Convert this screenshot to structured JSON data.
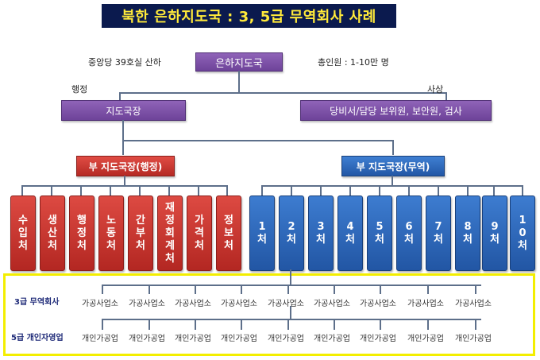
{
  "title": "북한 은하지도국 : 3, 5급 무역회사 사례",
  "top": {
    "left_note": "중앙당 39호실 산하",
    "center": "은하지도국",
    "right_note": "총인원 : 1-10만 명"
  },
  "branches": {
    "left_label": "행정",
    "right_label": "사상",
    "left_box": "지도국장",
    "right_box": "당비서/담당 보위원, 보안원, 검사"
  },
  "deputies": {
    "admin": "부 지도국장(행정)",
    "trade": "부 지도국장(무역)"
  },
  "admin_depts": [
    "수입처",
    "생산처",
    "행정처",
    "노동처",
    "간부처",
    "재정회계처",
    "가격처",
    "정보처"
  ],
  "trade_depts": [
    "1처",
    "2처",
    "3처",
    "4처",
    "5처",
    "6처",
    "7처",
    "8처",
    "9처",
    "10처"
  ],
  "bottom": {
    "row1_label": "3급 무역회사",
    "row1_items": [
      "가공사업소",
      "가공사업소",
      "가공사업소",
      "가공사업소",
      "가공사업소",
      "가공사업소",
      "가공사업소",
      "가공사업소",
      "가공사업소"
    ],
    "row2_label": "5급 개인자영업",
    "row2_items": [
      "개인가공업",
      "개인가공업",
      "개인가공업",
      "개인가공업",
      "개인가공업",
      "개인가공업",
      "개인가공업",
      "개인가공업",
      "개인가공업"
    ]
  },
  "colors": {
    "title_bg": "#0b1a4e",
    "title_text": "#ffea3a",
    "purple": "#7a4ea6",
    "red": "#c9332c",
    "blue": "#2d68b9",
    "highlight": "#f3ee00"
  }
}
